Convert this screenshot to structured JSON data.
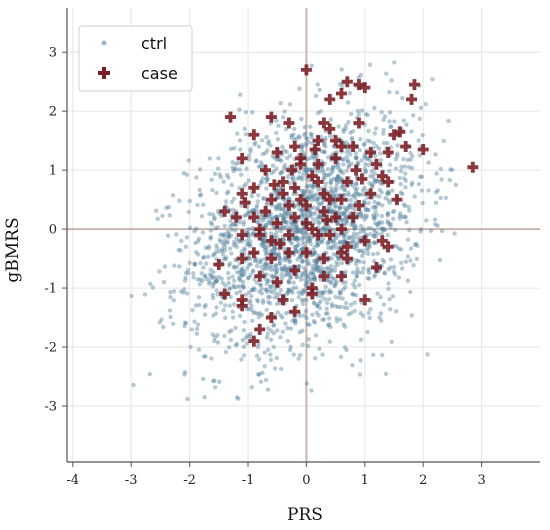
{
  "chart_data": {
    "type": "scatter",
    "xlabel": "PRS",
    "ylabel": "gBMRS",
    "xlim": [
      -4.1,
      4.0
    ],
    "ylim": [
      -3.95,
      3.75
    ],
    "x_ticks": [
      -4,
      -3,
      -2,
      -1,
      0,
      1,
      2,
      3
    ],
    "y_ticks": [
      -3,
      -2,
      -1,
      0,
      1,
      2,
      3
    ],
    "x_tick_labels": [
      "-4",
      "-3",
      "-2",
      "-1",
      "0",
      "1",
      "2",
      "3"
    ],
    "y_tick_labels": [
      "-3",
      "-2",
      "-1",
      "0",
      "1",
      "2",
      "3"
    ],
    "grid": true,
    "reference_lines": {
      "x": 0,
      "y": 0
    },
    "legend_position": "top-left",
    "series": [
      {
        "name": "ctrl",
        "marker": "dot",
        "color": "#4f7f9a",
        "count": 2200,
        "mean": [
          0.0,
          0.0
        ],
        "sd": [
          1.0,
          1.0
        ],
        "correlation": 0.3,
        "x_range": [
          -3.0,
          2.6
        ],
        "y_range": [
          -3.5,
          3.5
        ]
      },
      {
        "name": "case",
        "marker": "plus",
        "color": "#7b1c22",
        "points": [
          [
            -1.3,
            1.9
          ],
          [
            -0.6,
            1.9
          ],
          [
            -0.3,
            1.8
          ],
          [
            0.0,
            2.7
          ],
          [
            0.6,
            2.3
          ],
          [
            0.7,
            2.5
          ],
          [
            0.9,
            2.45
          ],
          [
            1.0,
            2.4
          ],
          [
            1.85,
            2.45
          ],
          [
            1.8,
            2.2
          ],
          [
            0.4,
            2.2
          ],
          [
            0.3,
            1.8
          ],
          [
            0.4,
            1.7
          ],
          [
            0.9,
            1.8
          ],
          [
            1.5,
            1.6
          ],
          [
            1.6,
            1.65
          ],
          [
            0.5,
            1.5
          ],
          [
            0.6,
            1.4
          ],
          [
            0.8,
            1.4
          ],
          [
            1.1,
            1.3
          ],
          [
            1.4,
            1.3
          ],
          [
            1.7,
            1.4
          ],
          [
            2.0,
            1.35
          ],
          [
            2.85,
            1.05
          ],
          [
            -0.9,
            1.6
          ],
          [
            -0.5,
            1.3
          ],
          [
            -0.2,
            1.4
          ],
          [
            0.2,
            1.5
          ],
          [
            -0.1,
            1.1
          ],
          [
            0.1,
            0.9
          ],
          [
            -1.1,
            1.2
          ],
          [
            -0.7,
            1.0
          ],
          [
            -0.4,
            0.8
          ],
          [
            0.2,
            0.8
          ],
          [
            0.7,
            0.8
          ],
          [
            1.3,
            0.9
          ],
          [
            1.4,
            0.8
          ],
          [
            -1.1,
            0.6
          ],
          [
            -0.9,
            0.7
          ],
          [
            -0.6,
            0.5
          ],
          [
            -0.4,
            0.6
          ],
          [
            -0.1,
            0.5
          ],
          [
            0.3,
            0.6
          ],
          [
            0.6,
            0.5
          ],
          [
            0.9,
            0.4
          ],
          [
            1.1,
            0.6
          ],
          [
            -1.4,
            0.3
          ],
          [
            -1.2,
            0.2
          ],
          [
            -0.9,
            0.2
          ],
          [
            -0.7,
            0.3
          ],
          [
            -0.5,
            0.1
          ],
          [
            -0.2,
            0.2
          ],
          [
            0.0,
            0.1
          ],
          [
            0.3,
            0.3
          ],
          [
            0.5,
            0.2
          ],
          [
            0.8,
            0.2
          ],
          [
            -1.1,
            -0.1
          ],
          [
            -0.8,
            0.0
          ],
          [
            -0.6,
            -0.2
          ],
          [
            -0.3,
            -0.1
          ],
          [
            0.1,
            0.0
          ],
          [
            0.4,
            -0.1
          ],
          [
            0.7,
            -0.3
          ],
          [
            1.0,
            -0.2
          ],
          [
            1.3,
            -0.2
          ],
          [
            1.4,
            -0.3
          ],
          [
            -1.5,
            -0.6
          ],
          [
            -1.1,
            -0.5
          ],
          [
            -0.9,
            -0.4
          ],
          [
            -0.6,
            -0.5
          ],
          [
            -0.3,
            -0.4
          ],
          [
            0.0,
            -0.4
          ],
          [
            0.3,
            -0.5
          ],
          [
            0.6,
            -0.4
          ],
          [
            0.7,
            -0.5
          ],
          [
            1.2,
            -0.65
          ],
          [
            -1.4,
            -1.1
          ],
          [
            -1.1,
            -1.2
          ],
          [
            -0.8,
            -0.8
          ],
          [
            -0.5,
            -0.9
          ],
          [
            -0.2,
            -0.7
          ],
          [
            0.1,
            -1.0
          ],
          [
            0.1,
            -1.1
          ],
          [
            0.3,
            -0.8
          ],
          [
            0.6,
            -0.8
          ],
          [
            -1.1,
            -1.3
          ],
          [
            -0.8,
            -1.7
          ],
          [
            -0.6,
            -1.5
          ],
          [
            -0.2,
            -1.4
          ],
          [
            1.0,
            -1.2
          ],
          [
            -0.9,
            -1.9
          ],
          [
            -0.4,
            -1.2
          ],
          [
            -0.1,
            1.2
          ],
          [
            0.5,
            1.2
          ],
          [
            0.2,
            1.1
          ],
          [
            -0.2,
            0.7
          ],
          [
            0.0,
            0.4
          ],
          [
            0.4,
            0.5
          ],
          [
            -0.3,
            0.4
          ],
          [
            -0.8,
            -0.1
          ],
          [
            0.2,
            -0.1
          ],
          [
            0.6,
            0.0
          ],
          [
            -1.05,
            0.45
          ],
          [
            -0.55,
            0.75
          ],
          [
            0.15,
            1.35
          ],
          [
            0.85,
            1.0
          ],
          [
            1.2,
            1.1
          ],
          [
            1.55,
            0.5
          ],
          [
            -0.45,
            -0.25
          ],
          [
            0.35,
            0.15
          ],
          [
            0.95,
            0.85
          ],
          [
            -0.25,
            1.0
          ]
        ]
      }
    ]
  }
}
